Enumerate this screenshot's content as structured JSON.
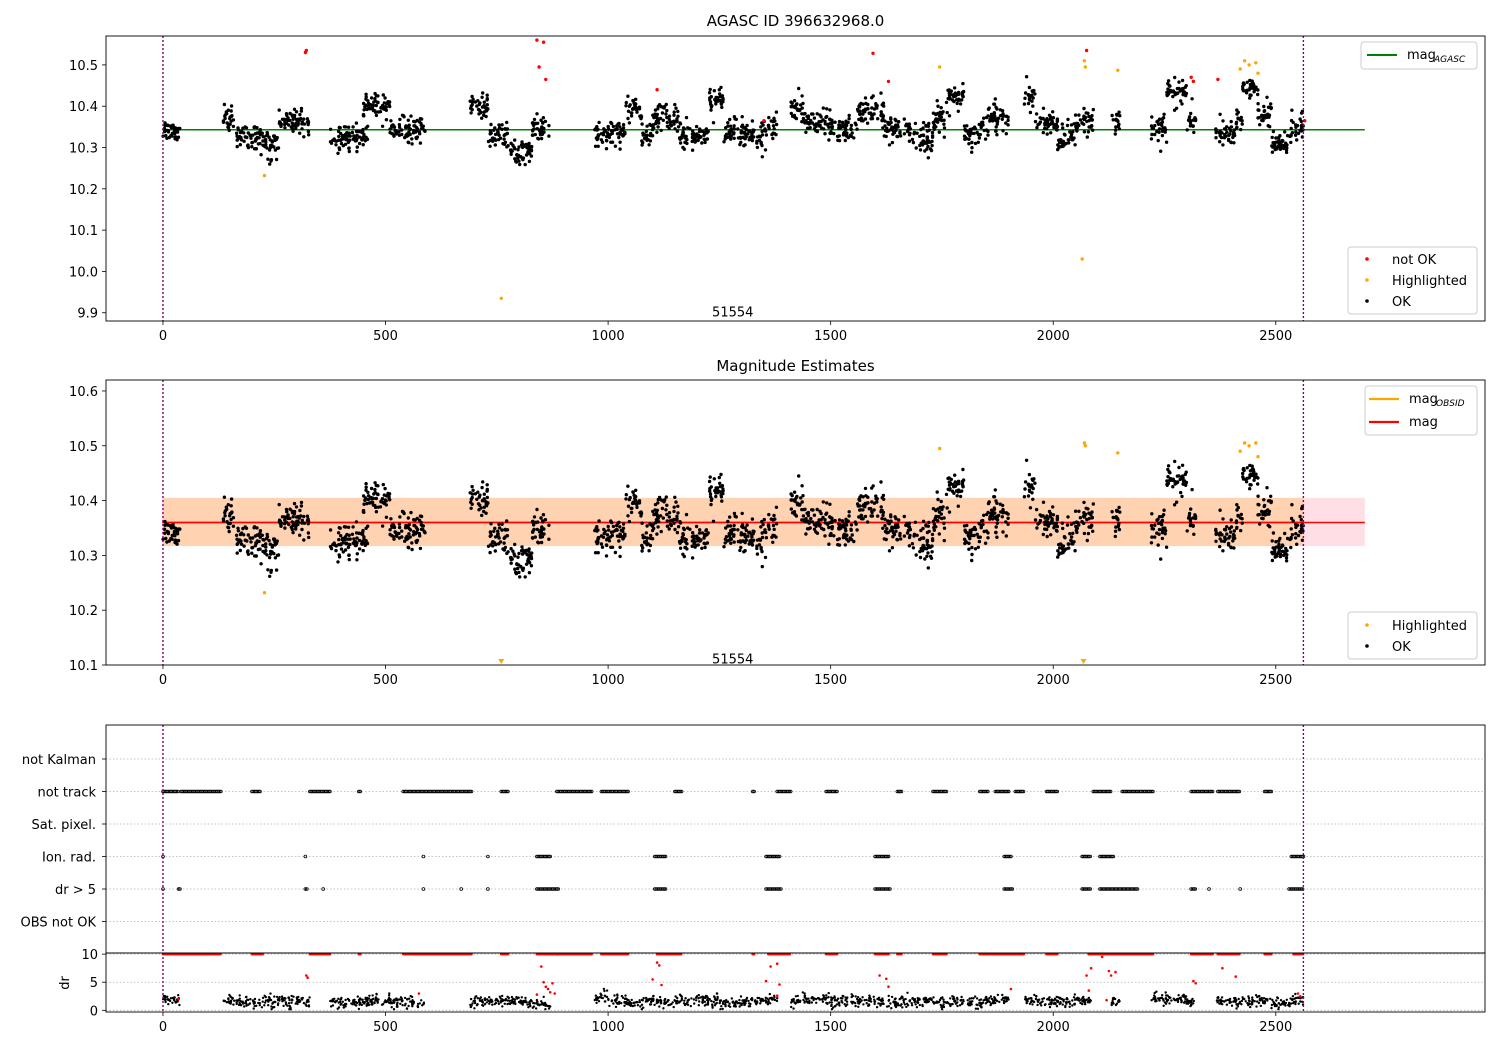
{
  "chart_data": [
    {
      "type": "scatter",
      "title": "AGASC ID 396632968.0",
      "xlim": [
        -128,
        2970
      ],
      "ylim": [
        9.88,
        10.57
      ],
      "xticks": [
        "0",
        "500",
        "1000",
        "1500",
        "2000",
        "2500"
      ],
      "yticks": [
        "9.9",
        "10.0",
        "10.1",
        "10.2",
        "10.3",
        "10.4",
        "10.5"
      ],
      "annotation": {
        "text": "51554",
        "x": 1280,
        "y": 9.9
      },
      "hlines": [
        {
          "name": "mag_AGASC",
          "y": 10.343,
          "color": "#008000"
        }
      ],
      "vlines": [
        0,
        2562
      ],
      "series": [
        {
          "name": "not OK",
          "color": "#ff0000"
        },
        {
          "name": "Highlighted",
          "color": "#ffa500"
        },
        {
          "name": "OK",
          "color": "#000000"
        }
      ],
      "legend_top": {
        "label": "mag",
        "sub": "AGASC",
        "placement": "top-right"
      },
      "legend_bottom": {
        "items": [
          "not OK",
          "Highlighted",
          "OK"
        ],
        "placement": "bottom-right"
      },
      "outliers": {
        "not_ok": [
          [
            320,
            10.53
          ],
          [
            322,
            10.535
          ],
          [
            840,
            10.56
          ],
          [
            855,
            10.555
          ],
          [
            845,
            10.495
          ],
          [
            860,
            10.465
          ],
          [
            1110,
            10.44
          ],
          [
            1595,
            10.528
          ],
          [
            1630,
            10.46
          ],
          [
            2075,
            10.535
          ],
          [
            2310,
            10.47
          ],
          [
            2315,
            10.46
          ],
          [
            2370,
            10.465
          ],
          [
            2565,
            10.365
          ],
          [
            1350,
            10.365
          ]
        ],
        "highlighted": [
          [
            228,
            10.232
          ],
          [
            760,
            9.935
          ],
          [
            1745,
            10.495
          ],
          [
            2065,
            10.03
          ],
          [
            2070,
            10.51
          ],
          [
            2072,
            10.495
          ],
          [
            2145,
            10.487
          ],
          [
            2420,
            10.49
          ],
          [
            2430,
            10.51
          ],
          [
            2440,
            10.5
          ],
          [
            2455,
            10.505
          ],
          [
            2460,
            10.48
          ]
        ]
      }
    },
    {
      "type": "scatter",
      "title": "Magnitude Estimates",
      "xlim": [
        -128,
        2970
      ],
      "ylim": [
        10.1,
        10.62
      ],
      "xticks": [
        "0",
        "500",
        "1000",
        "1500",
        "2000",
        "2500"
      ],
      "yticks": [
        "10.1",
        "10.2",
        "10.3",
        "10.4",
        "10.5",
        "10.6"
      ],
      "annotation": {
        "text": "51554",
        "x": 1280,
        "y": 10.11
      },
      "hlines": [
        {
          "name": "mag_OBSID",
          "y": 10.36,
          "color": "#ffa500"
        },
        {
          "name": "mag",
          "y": 10.36,
          "color": "#ff0000"
        }
      ],
      "band": {
        "low": 10.317,
        "high": 10.405
      },
      "vlines": [
        0,
        2562
      ],
      "series": [
        {
          "name": "Highlighted",
          "color": "#ffa500"
        },
        {
          "name": "OK",
          "color": "#000000"
        }
      ],
      "legend_top": {
        "items": [
          {
            "label": "mag",
            "sub": "OBSID"
          },
          {
            "label": "mag",
            "sub": ""
          }
        ],
        "placement": "top-right"
      },
      "legend_bottom": {
        "items": [
          "Highlighted",
          "OK"
        ],
        "placement": "bottom-right"
      },
      "outliers": {
        "highlighted": [
          [
            228,
            10.232
          ],
          [
            1745,
            10.495
          ],
          [
            2070,
            10.505
          ],
          [
            2072,
            10.5
          ],
          [
            2145,
            10.487
          ],
          [
            2420,
            10.49
          ],
          [
            2430,
            10.505
          ],
          [
            2440,
            10.5
          ],
          [
            2455,
            10.505
          ],
          [
            2460,
            10.48
          ]
        ],
        "down_markers": [
          760,
          2068
        ]
      }
    },
    {
      "type": "scatter",
      "title": "",
      "xlim": [
        -128,
        2970
      ],
      "xticks": [
        "0",
        "500",
        "1000",
        "1500",
        "2000",
        "2500"
      ],
      "flag_categories": [
        "not Kalman",
        "not track",
        "Sat. pixel.",
        "Ion. rad.",
        "dr > 5",
        "OBS not OK"
      ],
      "vlines": [
        0,
        2562
      ],
      "flags": {
        "not track": [
          [
            0,
            35
          ],
          [
            40,
            130
          ],
          [
            200,
            220
          ],
          [
            330,
            375
          ],
          [
            440,
            445
          ],
          [
            540,
            695
          ],
          [
            760,
            775
          ],
          [
            885,
            965
          ],
          [
            985,
            1045
          ],
          [
            1150,
            1165
          ],
          [
            1325,
            1330
          ],
          [
            1380,
            1410
          ],
          [
            1490,
            1515
          ],
          [
            1650,
            1660
          ],
          [
            1730,
            1760
          ],
          [
            1835,
            1855
          ],
          [
            1870,
            1900
          ],
          [
            1915,
            1935
          ],
          [
            1985,
            2010
          ],
          [
            2090,
            2130
          ],
          [
            2155,
            2225
          ],
          [
            2310,
            2360
          ],
          [
            2370,
            2420
          ],
          [
            2475,
            2490
          ]
        ],
        "Ion. rad.": [
          [
            0,
            2
          ],
          [
            320,
            322
          ],
          [
            585,
            587
          ],
          [
            730,
            732
          ],
          [
            840,
            870
          ],
          [
            1105,
            1130
          ],
          [
            1355,
            1385
          ],
          [
            1600,
            1630
          ],
          [
            1890,
            1905
          ],
          [
            2065,
            2085
          ],
          [
            2105,
            2135
          ],
          [
            2535,
            2562
          ]
        ],
        "dr > 5": [
          [
            0,
            2
          ],
          [
            35,
            38
          ],
          [
            320,
            325
          ],
          [
            360,
            362
          ],
          [
            585,
            587
          ],
          [
            670,
            672
          ],
          [
            730,
            732
          ],
          [
            840,
            890
          ],
          [
            1105,
            1130
          ],
          [
            1355,
            1390
          ],
          [
            1600,
            1635
          ],
          [
            1890,
            1910
          ],
          [
            2065,
            2085
          ],
          [
            2105,
            2190
          ],
          [
            2310,
            2320
          ],
          [
            2350,
            2352
          ],
          [
            2420,
            2422
          ],
          [
            2530,
            2562
          ]
        ]
      },
      "dr": {
        "ylabel": "dr",
        "yticks": [
          "0",
          "5",
          "10"
        ],
        "ylim": [
          -0.3,
          10.2
        ],
        "clip_ranges": [
          [
            0,
            130
          ],
          [
            200,
            225
          ],
          [
            330,
            375
          ],
          [
            440,
            445
          ],
          [
            540,
            695
          ],
          [
            760,
            775
          ],
          [
            840,
            890
          ],
          [
            885,
            965
          ],
          [
            985,
            1045
          ],
          [
            1110,
            1165
          ],
          [
            1325,
            1330
          ],
          [
            1360,
            1410
          ],
          [
            1490,
            1515
          ],
          [
            1600,
            1630
          ],
          [
            1650,
            1660
          ],
          [
            1730,
            1760
          ],
          [
            1835,
            1935
          ],
          [
            1985,
            2010
          ],
          [
            2080,
            2225
          ],
          [
            2310,
            2360
          ],
          [
            2370,
            2420
          ],
          [
            2475,
            2490
          ],
          [
            2540,
            2562
          ]
        ],
        "red_scatter": [
          [
            322,
            6.2
          ],
          [
            325,
            5.8
          ],
          [
            850,
            7.8
          ],
          [
            855,
            5.0
          ],
          [
            860,
            4.2
          ],
          [
            865,
            3.8
          ],
          [
            870,
            3.2
          ],
          [
            840,
            2.8
          ],
          [
            875,
            4.8
          ],
          [
            880,
            3.0
          ],
          [
            1100,
            5.5
          ],
          [
            1110,
            8.5
          ],
          [
            1115,
            8.0
          ],
          [
            1120,
            4.5
          ],
          [
            1355,
            5.2
          ],
          [
            1365,
            7.8
          ],
          [
            1380,
            8.3
          ],
          [
            1385,
            4.6
          ],
          [
            1380,
            2.6
          ],
          [
            1610,
            6.2
          ],
          [
            1625,
            5.6
          ],
          [
            1630,
            4.2
          ],
          [
            1905,
            3.8
          ],
          [
            2075,
            6.2
          ],
          [
            2080,
            3.5
          ],
          [
            2085,
            7.5
          ],
          [
            2110,
            9.5
          ],
          [
            2125,
            7.0
          ],
          [
            2130,
            6.2
          ],
          [
            2140,
            6.8
          ],
          [
            2120,
            1.8
          ],
          [
            2315,
            5.2
          ],
          [
            2320,
            4.8
          ],
          [
            2380,
            7.5
          ],
          [
            2410,
            6.0
          ],
          [
            2550,
            3.0
          ],
          [
            2555,
            2.5
          ],
          [
            575,
            3.0
          ],
          [
            35,
            2.0
          ]
        ]
      },
      "colors": {
        "black": "#000000",
        "red": "#ff0000",
        "purple": "#800080",
        "grid": "#b0b0b0"
      }
    }
  ]
}
